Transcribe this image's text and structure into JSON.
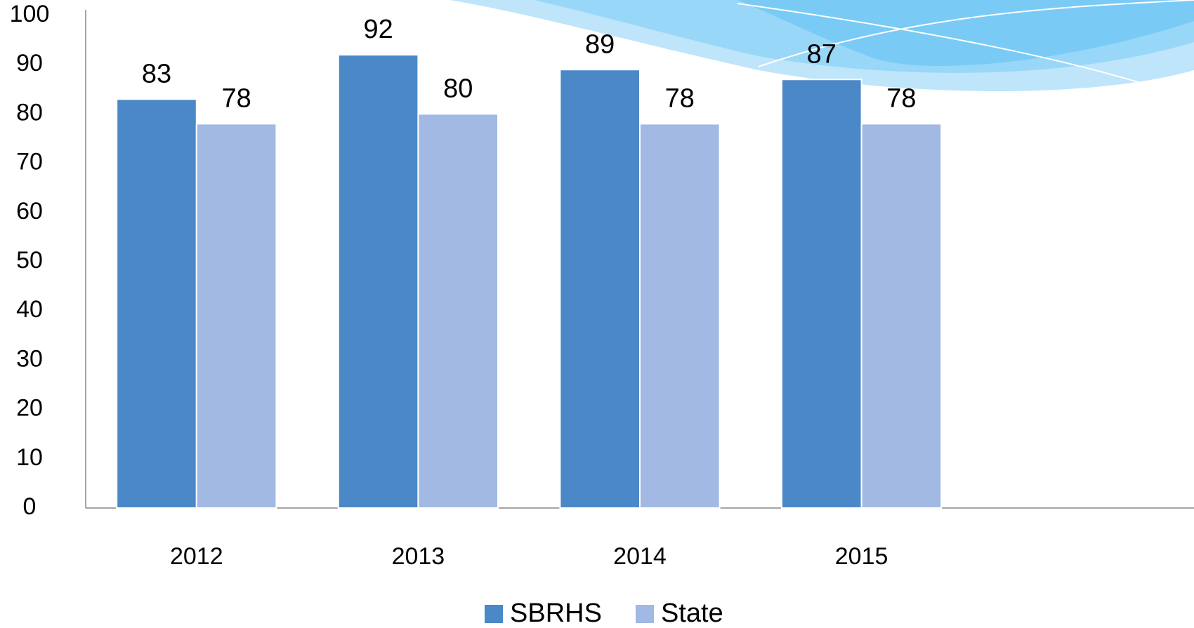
{
  "chart_data": {
    "type": "bar",
    "categories": [
      "2012",
      "2013",
      "2014",
      "2015",
      null
    ],
    "series": [
      {
        "name": "SBRHS",
        "color": "#4a88c7",
        "values": [
          83,
          92,
          89,
          87,
          null
        ]
      },
      {
        "name": "State",
        "color": "#a1b9e3",
        "values": [
          78,
          80,
          78,
          78,
          null
        ]
      }
    ],
    "ylim": [
      0,
      100
    ],
    "yticks": [
      0,
      10,
      20,
      30,
      40,
      50,
      60,
      70,
      80,
      90,
      100
    ],
    "grid": false,
    "legend": "bottom"
  }
}
